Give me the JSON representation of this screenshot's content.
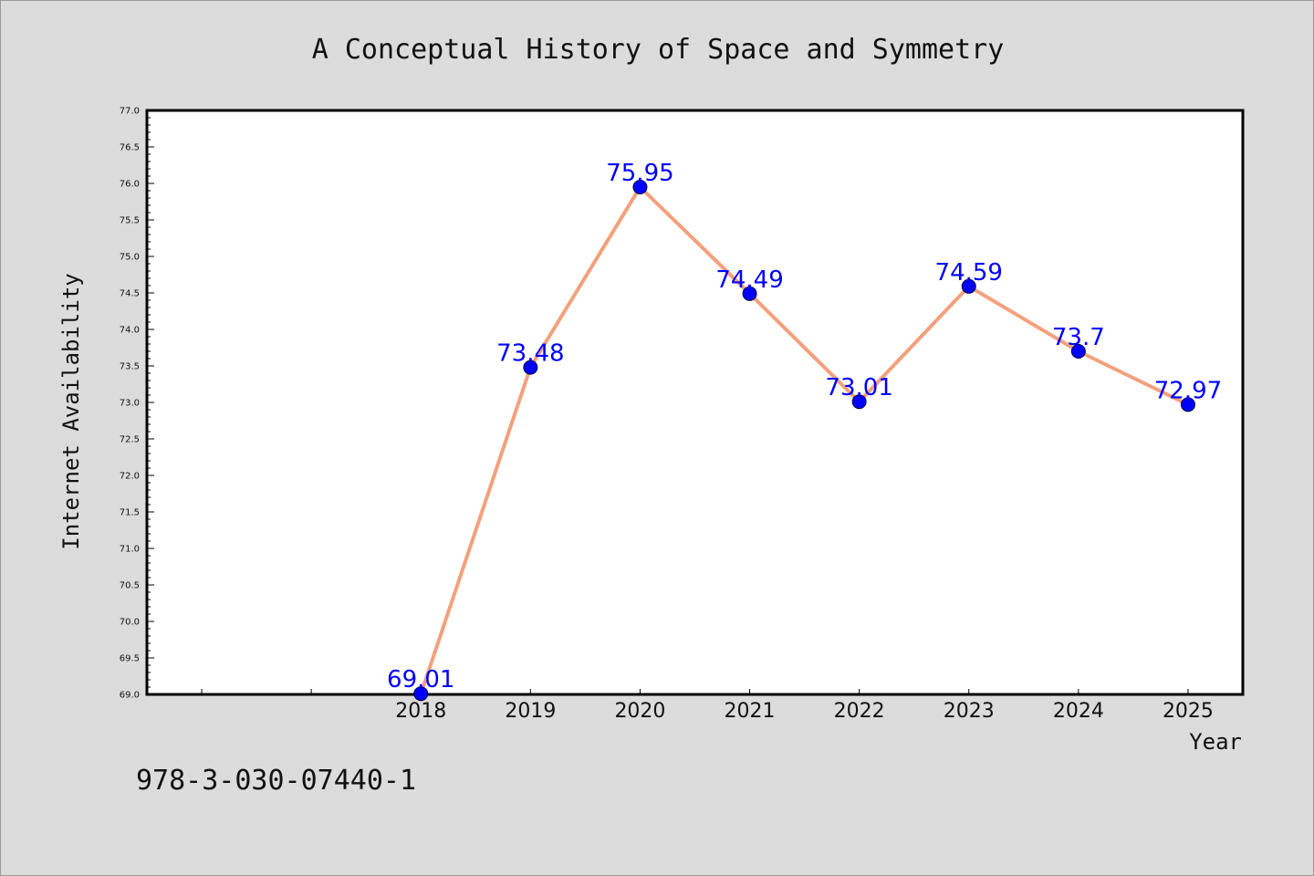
{
  "chart_data": {
    "type": "line",
    "title": "A Conceptual History of Space and Symmetry",
    "xlabel": "Year",
    "ylabel": "Internet Availability",
    "categories": [
      "2018",
      "2019",
      "2020",
      "2021",
      "2022",
      "2023",
      "2024",
      "2025"
    ],
    "series": [
      {
        "values": [
          69.01,
          73.48,
          75.95,
          74.49,
          73.01,
          74.59,
          73.7,
          72.97
        ]
      }
    ],
    "data_labels": [
      "69.01",
      "73.48",
      "75.95",
      "74.49",
      "73.01",
      "74.59",
      "73.7",
      "72.97"
    ],
    "ylim": [
      69.0,
      77.0
    ],
    "yticks": [
      "69.0",
      "69.5",
      "70.0",
      "70.5",
      "71.0",
      "71.5",
      "72.0",
      "72.5",
      "73.0",
      "73.5",
      "74.0",
      "74.5",
      "75.0",
      "75.5",
      "76.0",
      "76.5",
      "77.0"
    ],
    "xlim": [
      2015.5,
      2025.5
    ],
    "grid": false,
    "legend": "none",
    "colors": {
      "line": "#f4a07c",
      "marker": "#0000ff",
      "data_label": "#0000ff",
      "plot_background": "#ffffff",
      "figure_background": "#dcdcdc"
    }
  },
  "footer": {
    "code": "978-3-030-07440-1"
  }
}
